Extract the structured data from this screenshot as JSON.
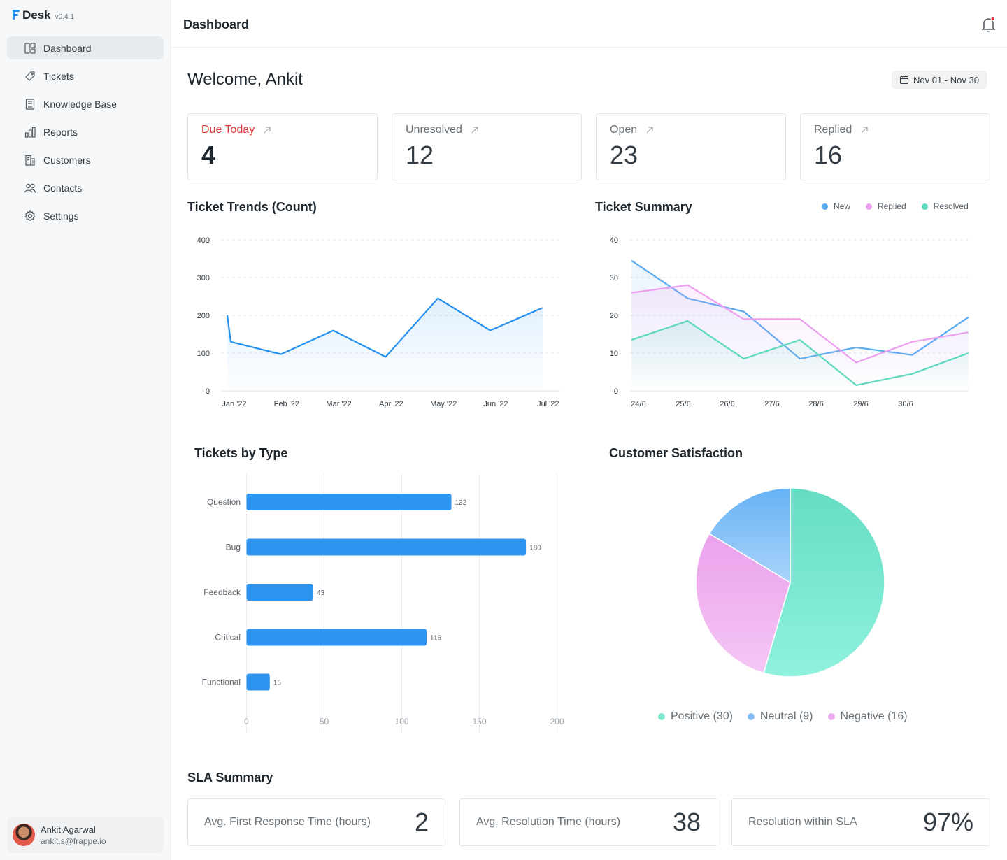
{
  "app": {
    "name": "Desk",
    "version": "v0.4.1"
  },
  "sidebar": {
    "items": [
      {
        "label": "Dashboard",
        "icon": "dashboard-icon",
        "active": true
      },
      {
        "label": "Tickets",
        "icon": "ticket-icon"
      },
      {
        "label": "Knowledge Base",
        "icon": "book-icon"
      },
      {
        "label": "Reports",
        "icon": "bar-chart-icon"
      },
      {
        "label": "Customers",
        "icon": "building-icon"
      },
      {
        "label": "Contacts",
        "icon": "users-icon"
      },
      {
        "label": "Settings",
        "icon": "gear-icon"
      }
    ],
    "user": {
      "name": "Ankit Agarwal",
      "email": "ankit.s@frappe.io"
    }
  },
  "header": {
    "title": "Dashboard"
  },
  "main": {
    "welcome": "Welcome, Ankit",
    "date_range": "Nov 01 - Nov 30",
    "kpis": [
      {
        "label": "Due Today",
        "value": "4"
      },
      {
        "label": "Unresolved",
        "value": "12"
      },
      {
        "label": "Open",
        "value": "23"
      },
      {
        "label": "Replied",
        "value": "16"
      }
    ],
    "sections": {
      "ticket_trends": "Ticket Trends (Count)",
      "ticket_summary": "Ticket Summary",
      "tickets_by_type": "Tickets by Type",
      "customer_satisfaction": "Customer Satisfaction",
      "sla_summary": "SLA Summary"
    },
    "sla": [
      {
        "label": "Avg. First Response Time (hours)",
        "value": "2"
      },
      {
        "label": "Avg. Resolution Time (hours)",
        "value": "38"
      },
      {
        "label": "Resolution within SLA",
        "value": "97%"
      }
    ]
  },
  "colors": {
    "accent": "#2490ef",
    "danger": "#e03636",
    "new": "#5aaaf0",
    "replied": "#ec9ff0",
    "resolved": "#5ed9bf"
  },
  "chart_data": [
    {
      "id": "ticket_trends",
      "type": "line",
      "title": "Ticket Trends (Count)",
      "categories": [
        "Jan '22",
        "Feb '22",
        "Mar '22",
        "Apr  '22",
        "May '22",
        "Jun '22",
        "Jul '22"
      ],
      "x": [
        0,
        0.12,
        1,
        2,
        3,
        4,
        5,
        6
      ],
      "values": [
        200,
        130,
        97,
        160,
        90,
        245,
        160,
        220
      ],
      "ylim": [
        0,
        400
      ],
      "yticks": [
        0,
        100,
        200,
        300,
        400
      ],
      "grid": true
    },
    {
      "id": "ticket_summary",
      "type": "line",
      "title": "Ticket Summary",
      "categories": [
        "24/6",
        "25/6",
        "26/6",
        "27/6",
        "28/6",
        "29/6",
        "30/6"
      ],
      "legend": [
        "New",
        "Replied",
        "Resolved"
      ],
      "legend_position": "top-right",
      "series": [
        {
          "name": "New",
          "values": [
            34.5,
            24.5,
            21,
            8.5,
            11.5,
            9.5,
            19.5
          ]
        },
        {
          "name": "Replied",
          "values": [
            26,
            28,
            19,
            19,
            7.5,
            13,
            15.5
          ]
        },
        {
          "name": "Resolved",
          "values": [
            13.5,
            18.5,
            8.5,
            13.5,
            1.5,
            4.5,
            10
          ]
        }
      ],
      "ylim": [
        0,
        40
      ],
      "yticks": [
        0,
        10,
        20,
        30,
        40
      ],
      "grid": true
    },
    {
      "id": "tickets_by_type",
      "type": "bar",
      "orientation": "horizontal",
      "title": "Tickets by Type",
      "categories": [
        "Question",
        "Bug",
        "Feedback",
        "Critical",
        "Functional"
      ],
      "values": [
        132,
        180,
        43,
        116,
        15
      ],
      "xlim": [
        0,
        200
      ],
      "xticks": [
        0,
        50,
        100,
        150,
        200
      ],
      "data_labels": true
    },
    {
      "id": "customer_satisfaction",
      "type": "pie",
      "title": "Customer Satisfaction",
      "slices": [
        {
          "label": "Positive (30)",
          "name": "Positive",
          "value": 30
        },
        {
          "label": "Neutral (9)",
          "name": "Neutral",
          "value": 9
        },
        {
          "label": "Negative (16)",
          "name": "Negative",
          "value": 16
        }
      ],
      "legend_position": "bottom"
    }
  ]
}
